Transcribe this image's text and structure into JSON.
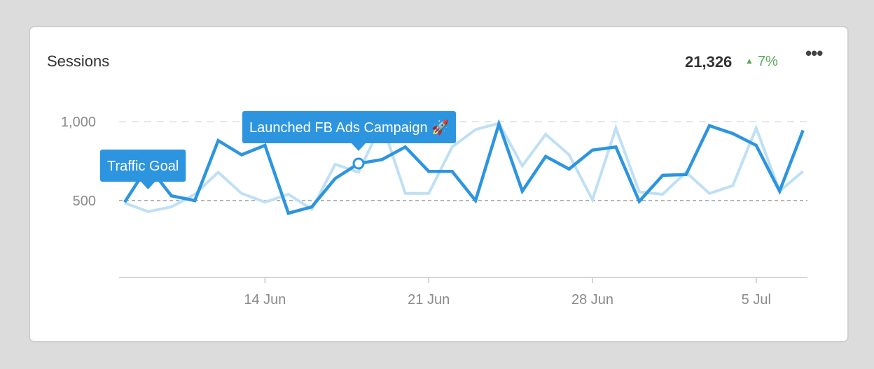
{
  "card": {
    "title": "Sessions",
    "total": "21,326",
    "change": "7%",
    "more_icon": "ellipsis-icon"
  },
  "colors": {
    "current": "#2d95e0",
    "previous": "#bfe0f4",
    "annotation": "#2d95e0",
    "positive": "#5aa85a"
  },
  "chart_data": {
    "type": "line",
    "x_ticks": [
      {
        "label": "14 Jun",
        "index": 6
      },
      {
        "label": "21 Jun",
        "index": 13
      },
      {
        "label": "28 Jun",
        "index": 20
      },
      {
        "label": "5 Jul",
        "index": 27
      }
    ],
    "y_ticks": [
      {
        "label": "1,000",
        "value": 1000
      },
      {
        "label": "500",
        "value": 500
      }
    ],
    "ylim": [
      0,
      1000
    ],
    "series": [
      {
        "values": [
          485,
          430,
          460,
          540,
          680,
          545,
          490,
          540,
          445,
          730,
          680,
          990,
          545,
          545,
          840,
          950,
          990,
          720,
          920,
          790,
          505,
          960,
          555,
          540,
          680,
          545,
          595,
          960,
          560,
          685
        ]
      },
      {
        "values": [
          490,
          720,
          530,
          500,
          880,
          790,
          850,
          420,
          460,
          640,
          735,
          760,
          840,
          685,
          685,
          500,
          985,
          560,
          780,
          700,
          820,
          840,
          495,
          660,
          665,
          975,
          925,
          850,
          560,
          945
        ]
      }
    ],
    "annotations": [
      {
        "label": "Traffic Goal",
        "index": 1
      },
      {
        "label": "Launched FB Ads Campaign 🚀",
        "index": 10
      }
    ]
  }
}
